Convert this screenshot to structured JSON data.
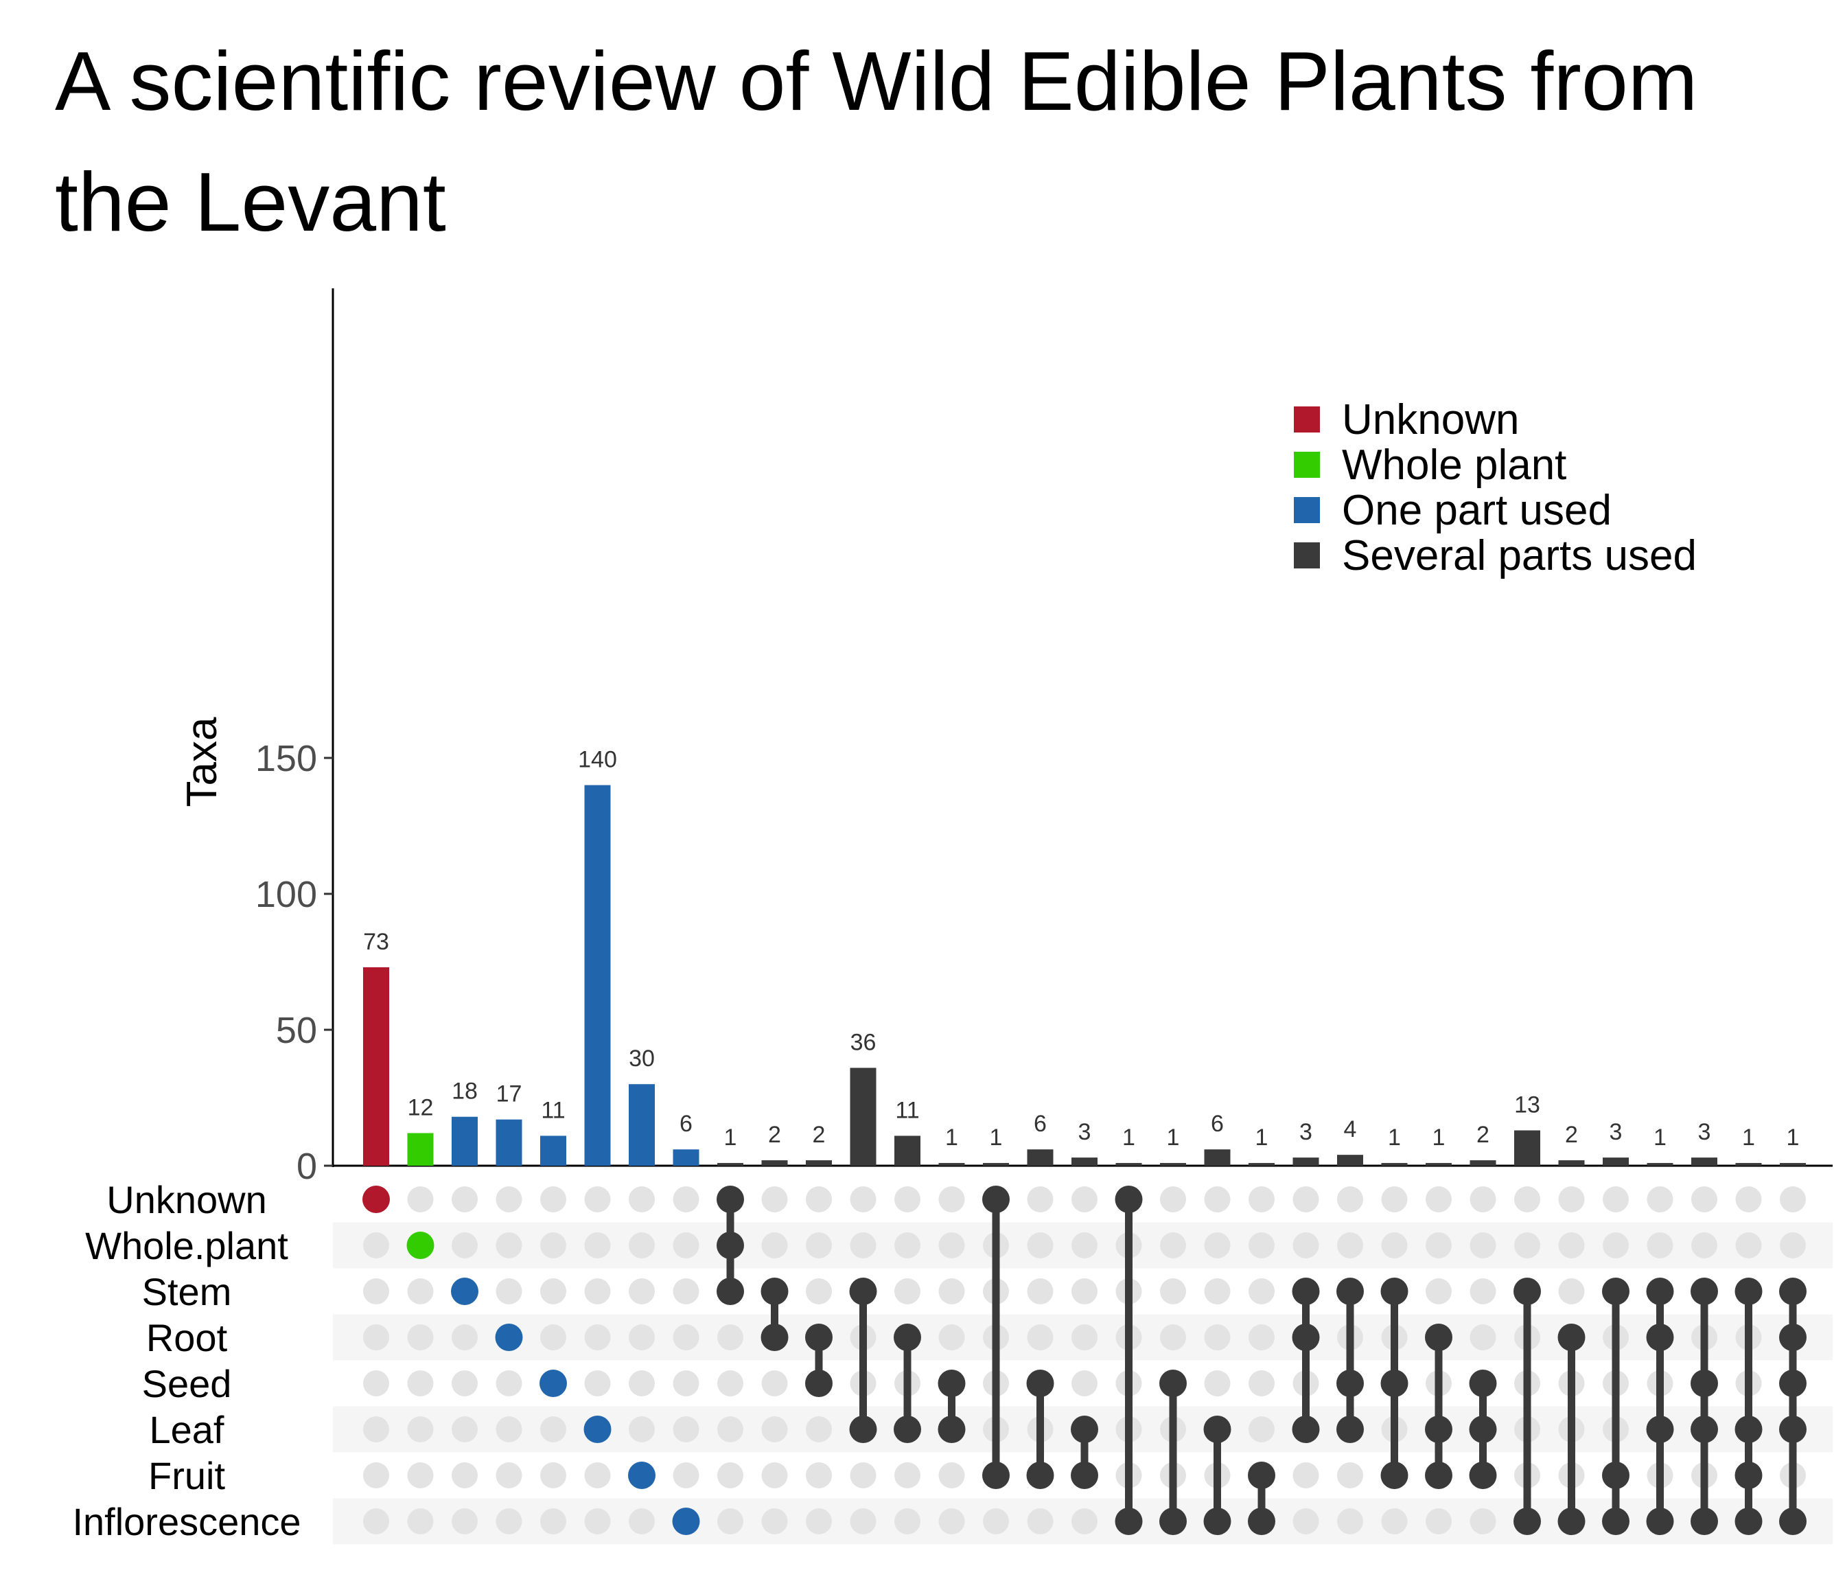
{
  "title": "A scientific review of Wild Edible Plants from the Levant",
  "legend": [
    {
      "label": "Unknown",
      "color": "#B2182B"
    },
    {
      "label": "Whole plant",
      "color": "#33CC00"
    },
    {
      "label": "One part used",
      "color": "#2166AC"
    },
    {
      "label": "Several parts used",
      "color": "#3A3A3A"
    }
  ],
  "chart_data": {
    "type": "bar",
    "subtype": "upset",
    "title": "A scientific review of Wild Edible Plants from the Levant",
    "ylabel": "Taxa",
    "ylim": [
      0,
      160
    ],
    "yticks": [
      0,
      50,
      100,
      150
    ],
    "sets": [
      "Unknown",
      "Whole.plant",
      "Stem",
      "Root",
      "Seed",
      "Leaf",
      "Fruit",
      "Inflorescence"
    ],
    "values": [
      73,
      12,
      18,
      17,
      11,
      140,
      30,
      6,
      1,
      2,
      2,
      36,
      11,
      1,
      1,
      6,
      3,
      1,
      1,
      6,
      1,
      3,
      4,
      1,
      1,
      2,
      13,
      2,
      3,
      1,
      3,
      1,
      1
    ],
    "groups": [
      0,
      1,
      2,
      2,
      2,
      2,
      2,
      2,
      3,
      3,
      3,
      3,
      3,
      3,
      3,
      3,
      3,
      3,
      3,
      3,
      3,
      3,
      3,
      3,
      3,
      3,
      3,
      3,
      3,
      3,
      3,
      3,
      3
    ],
    "intersections": [
      [
        "Unknown"
      ],
      [
        "Whole.plant"
      ],
      [
        "Stem"
      ],
      [
        "Root"
      ],
      [
        "Seed"
      ],
      [
        "Leaf"
      ],
      [
        "Fruit"
      ],
      [
        "Inflorescence"
      ],
      [
        "Unknown",
        "Whole.plant",
        "Stem"
      ],
      [
        "Stem",
        "Root"
      ],
      [
        "Root",
        "Seed"
      ],
      [
        "Stem",
        "Leaf"
      ],
      [
        "Root",
        "Leaf"
      ],
      [
        "Seed",
        "Leaf"
      ],
      [
        "Unknown",
        "Fruit"
      ],
      [
        "Seed",
        "Fruit"
      ],
      [
        "Leaf",
        "Fruit"
      ],
      [
        "Unknown",
        "Inflorescence"
      ],
      [
        "Seed",
        "Inflorescence"
      ],
      [
        "Leaf",
        "Inflorescence"
      ],
      [
        "Fruit",
        "Inflorescence"
      ],
      [
        "Stem",
        "Root",
        "Leaf"
      ],
      [
        "Stem",
        "Seed",
        "Leaf"
      ],
      [
        "Stem",
        "Seed",
        "Fruit"
      ],
      [
        "Root",
        "Leaf",
        "Fruit"
      ],
      [
        "Seed",
        "Leaf",
        "Fruit"
      ],
      [
        "Stem",
        "Inflorescence"
      ],
      [
        "Root",
        "Inflorescence"
      ],
      [
        "Stem",
        "Fruit",
        "Inflorescence"
      ],
      [
        "Stem",
        "Root",
        "Leaf",
        "Inflorescence"
      ],
      [
        "Stem",
        "Seed",
        "Leaf",
        "Inflorescence"
      ],
      [
        "Stem",
        "Leaf",
        "Fruit",
        "Inflorescence"
      ],
      [
        "Stem",
        "Root",
        "Seed",
        "Leaf",
        "Inflorescence"
      ]
    ],
    "legend_position": "top-right",
    "grid": false
  }
}
